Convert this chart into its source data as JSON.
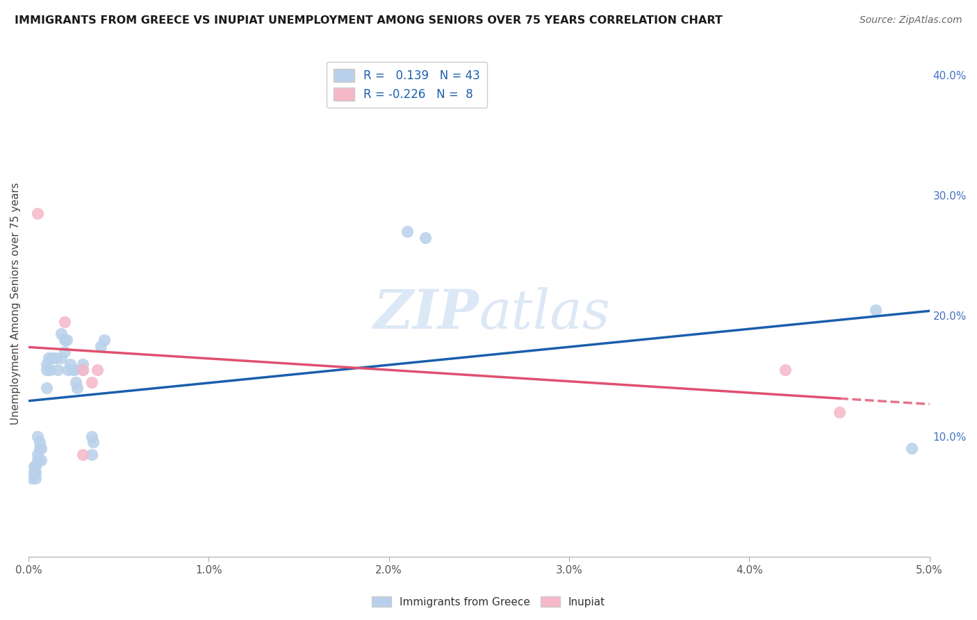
{
  "title": "IMMIGRANTS FROM GREECE VS INUPIAT UNEMPLOYMENT AMONG SENIORS OVER 75 YEARS CORRELATION CHART",
  "source": "Source: ZipAtlas.com",
  "ylabel": "Unemployment Among Seniors over 75 years",
  "legend_bottom": [
    "Immigrants from Greece",
    "Inupiat"
  ],
  "R_blue": 0.139,
  "N_blue": 43,
  "R_pink": -0.226,
  "N_pink": 8,
  "blue_color": "#b8d0ea",
  "pink_color": "#f5b8c8",
  "trend_blue": "#1a5fad",
  "trend_pink": "#e05070",
  "xlim": [
    0.0,
    0.05
  ],
  "ylim": [
    0.0,
    0.42
  ],
  "right_yticks": [
    0.1,
    0.2,
    0.3,
    0.4
  ],
  "right_yticklabels": [
    "10.0%",
    "20.0%",
    "30.0%",
    "40.0%"
  ],
  "blue_scatter_x": [
    0.0002,
    0.0003,
    0.0003,
    0.0004,
    0.0004,
    0.0004,
    0.0005,
    0.0005,
    0.0005,
    0.0006,
    0.0006,
    0.0007,
    0.0007,
    0.001,
    0.001,
    0.001,
    0.0011,
    0.0012,
    0.0013,
    0.0015,
    0.0016,
    0.0018,
    0.0018,
    0.002,
    0.002,
    0.0021,
    0.0022,
    0.0023,
    0.0025,
    0.0025,
    0.0026,
    0.0027,
    0.003,
    0.003,
    0.0035,
    0.0035,
    0.0036,
    0.004,
    0.0042,
    0.021,
    0.022,
    0.047,
    0.049
  ],
  "blue_scatter_y": [
    0.065,
    0.07,
    0.075,
    0.065,
    0.07,
    0.075,
    0.08,
    0.085,
    0.1,
    0.09,
    0.095,
    0.08,
    0.09,
    0.14,
    0.155,
    0.16,
    0.165,
    0.155,
    0.165,
    0.165,
    0.155,
    0.185,
    0.165,
    0.17,
    0.18,
    0.18,
    0.155,
    0.16,
    0.155,
    0.155,
    0.145,
    0.14,
    0.155,
    0.16,
    0.085,
    0.1,
    0.095,
    0.175,
    0.18,
    0.27,
    0.265,
    0.205,
    0.09
  ],
  "pink_scatter_x": [
    0.0005,
    0.002,
    0.003,
    0.003,
    0.0035,
    0.0038,
    0.042,
    0.045
  ],
  "pink_scatter_y": [
    0.285,
    0.195,
    0.155,
    0.085,
    0.145,
    0.155,
    0.155,
    0.12
  ],
  "bg_color": "#ffffff",
  "watermark_color": "#dce8f5"
}
